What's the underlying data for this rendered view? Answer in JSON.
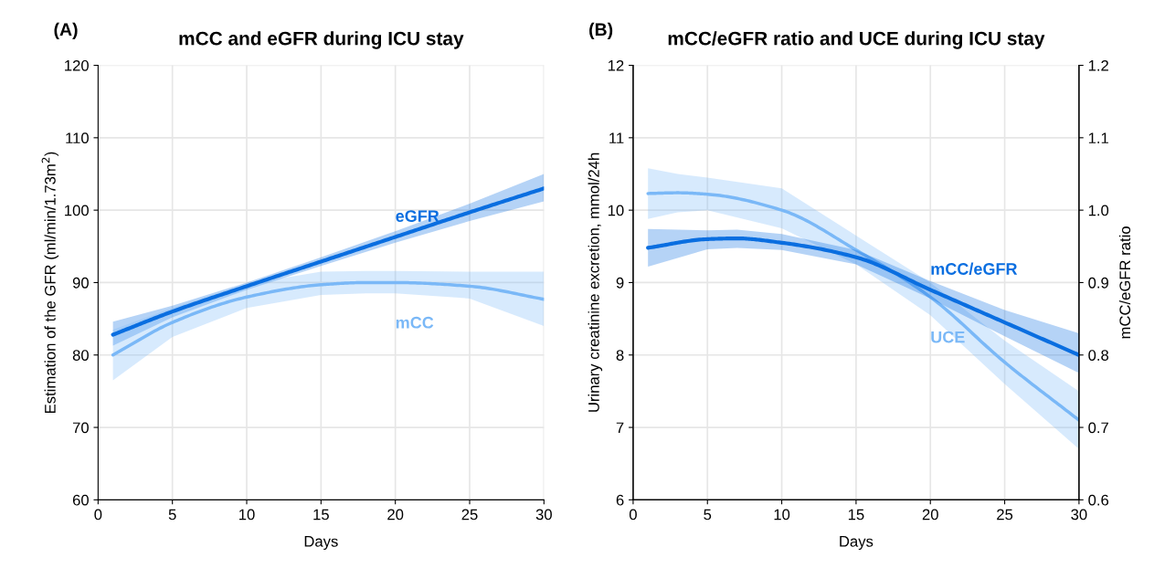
{
  "chart_data": [
    {
      "type": "line",
      "title": "mCC and eGFR during ICU stay",
      "xlabel": "Days",
      "ylabel": "Estimation of the GFR (ml/min/1.73m$^{2}$)",
      "annotations": [
        "(A)"
      ],
      "xlim": [
        0,
        30
      ],
      "xticks": [
        0,
        5,
        10,
        15,
        20,
        25,
        30
      ],
      "ylim": [
        60,
        120
      ],
      "yticks": [
        60,
        70,
        80,
        90,
        100,
        110,
        120
      ],
      "grid": true,
      "legend": false,
      "series": [
        {
          "name": "eGFR",
          "color": "#0a6ee0",
          "x": [
            1,
            5,
            10,
            15,
            20,
            25,
            30
          ],
          "values": [
            82.8,
            86.0,
            89.5,
            92.9,
            96.3,
            99.7,
            103.0
          ],
          "lower": [
            81.3,
            85.2,
            89.0,
            92.3,
            95.5,
            98.5,
            101.2
          ],
          "upper": [
            84.6,
            86.8,
            90.0,
            93.5,
            97.1,
            100.9,
            105.0
          ]
        },
        {
          "name": "mCC",
          "color": "#7ab8f7",
          "x": [
            1,
            5,
            10,
            15,
            18,
            20,
            25,
            30
          ],
          "values": [
            80.0,
            84.5,
            88.0,
            89.7,
            90.0,
            90.0,
            89.5,
            87.7
          ],
          "lower": [
            76.5,
            82.5,
            86.5,
            88.3,
            88.5,
            88.5,
            87.8,
            84.0
          ],
          "upper": [
            83.5,
            86.5,
            89.8,
            91.5,
            91.6,
            91.6,
            91.5,
            91.5
          ]
        }
      ]
    },
    {
      "type": "line",
      "title": "mCC/eGFR ratio and UCE during ICU stay",
      "xlabel": "Days",
      "ylabel": "Urinary creatinine excretion, mmol/24h",
      "y2label": "mCC/eGFR ratio",
      "annotations": [
        "(B)"
      ],
      "xlim": [
        0,
        30
      ],
      "xticks": [
        0,
        5,
        10,
        15,
        20,
        25,
        30
      ],
      "ylim": [
        6,
        12
      ],
      "yticks": [
        6,
        7,
        8,
        9,
        10,
        11,
        12
      ],
      "y2lim": [
        0.6,
        1.2
      ],
      "y2ticks": [
        {
          "value": 0.6,
          "label": "0.6"
        },
        {
          "value": 0.7,
          "label": "0.7"
        },
        {
          "value": 0.8,
          "label": "0.8"
        },
        {
          "value": 0.9,
          "label": "0.9"
        },
        {
          "value": 1.0,
          "label": "1.0"
        },
        {
          "value": 1.1,
          "label": "1.1"
        },
        {
          "value": 1.2,
          "label": "1.2"
        }
      ],
      "grid": true,
      "legend": false,
      "series": [
        {
          "name": "mCC/eGFR",
          "color": "#0a6ee0",
          "axis": "y2",
          "x": [
            1,
            5,
            7,
            10,
            15,
            20,
            25,
            30
          ],
          "values": [
            0.948,
            0.96,
            0.961,
            0.955,
            0.935,
            0.89,
            0.845,
            0.8
          ],
          "lower": [
            0.922,
            0.946,
            0.948,
            0.945,
            0.925,
            0.878,
            0.826,
            0.775
          ],
          "upper": [
            0.974,
            0.972,
            0.973,
            0.967,
            0.945,
            0.902,
            0.862,
            0.83
          ]
        },
        {
          "name": "UCE",
          "color": "#7ab8f7",
          "x": [
            1,
            3,
            5,
            10,
            15,
            20,
            25,
            30
          ],
          "values": [
            10.23,
            10.24,
            10.22,
            10.0,
            9.45,
            8.8,
            7.9,
            7.1
          ],
          "lower": [
            9.88,
            9.97,
            10.0,
            9.75,
            9.25,
            8.55,
            7.6,
            6.7
          ],
          "upper": [
            10.58,
            10.5,
            10.45,
            10.3,
            9.65,
            9.0,
            8.2,
            7.5
          ]
        }
      ]
    }
  ]
}
